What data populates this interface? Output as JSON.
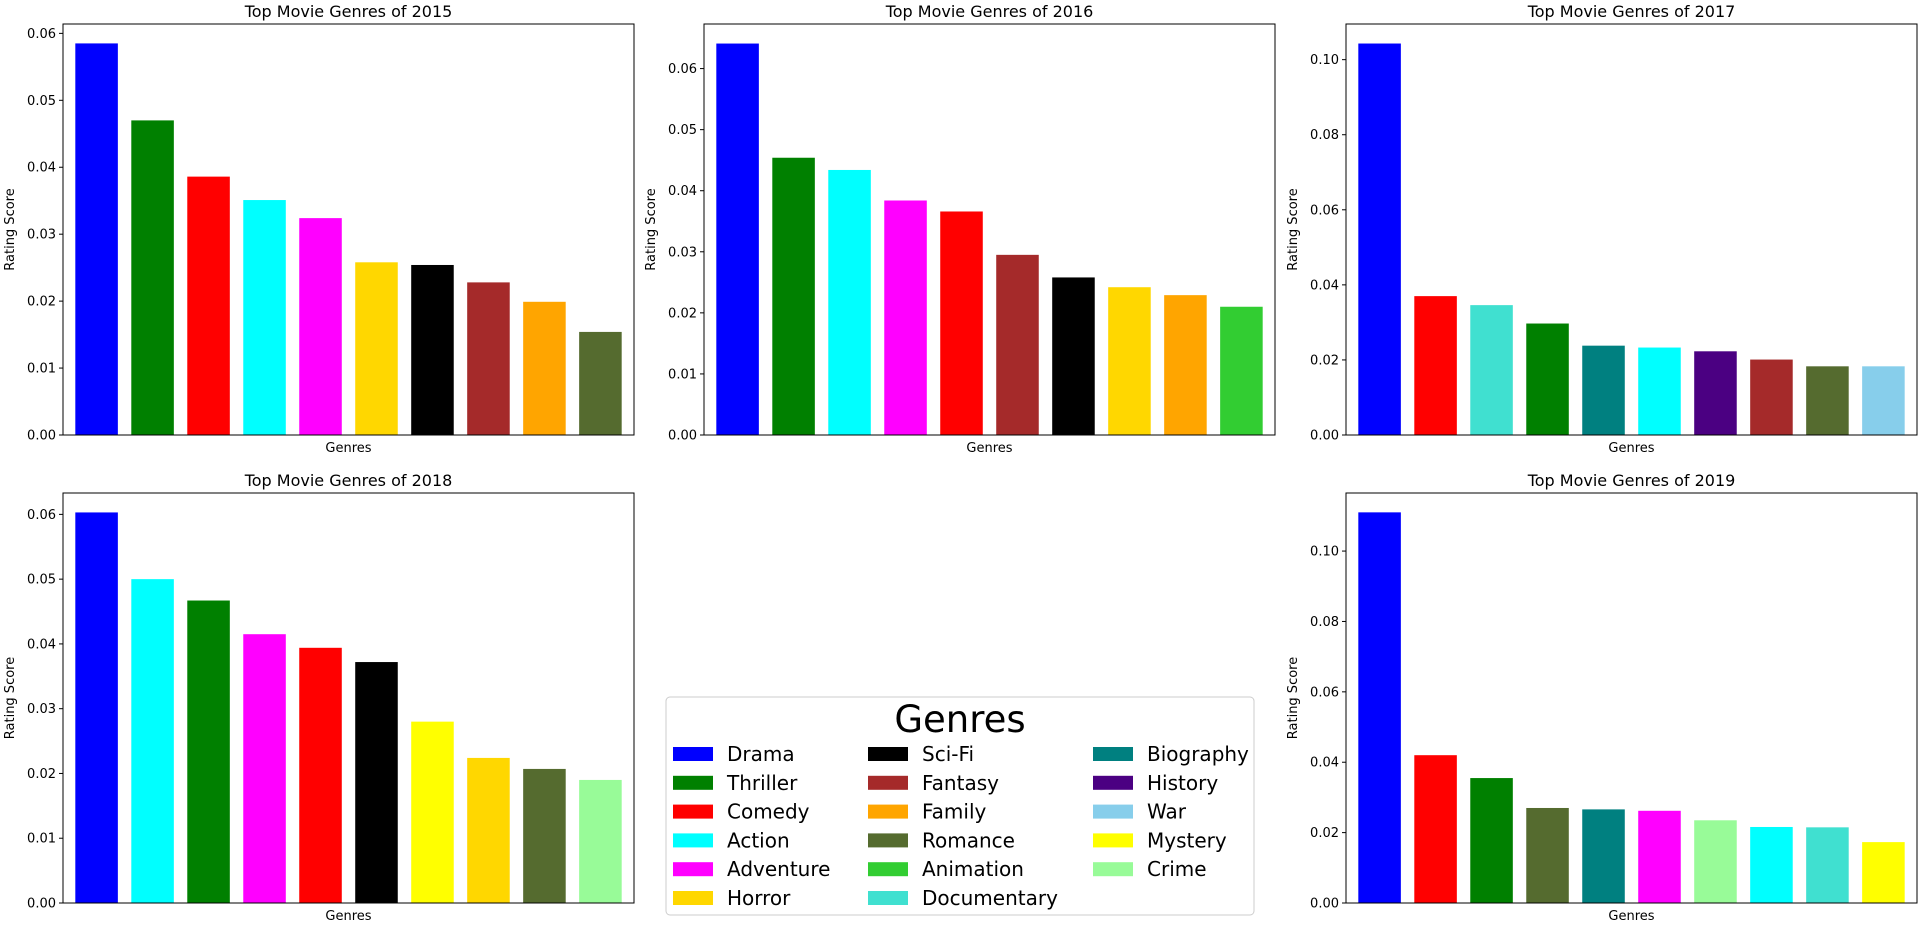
{
  "chart_data": [
    {
      "type": "bar",
      "title": "Top Movie Genres of 2015",
      "xlabel": "Genres",
      "ylabel": "Rating Score",
      "ylim": [
        0,
        0.0614
      ],
      "yticks": [
        "0.00",
        "0.01",
        "0.02",
        "0.03",
        "0.04",
        "0.05",
        "0.06"
      ],
      "categories": [
        "Drama",
        "Thriller",
        "Comedy",
        "Action",
        "Adventure",
        "Horror",
        "Sci-Fi",
        "Fantasy",
        "Family",
        "Romance"
      ],
      "values": [
        0.0585,
        0.047,
        0.0386,
        0.0351,
        0.0324,
        0.0258,
        0.0254,
        0.0228,
        0.0199,
        0.0154
      ],
      "colors": [
        "#0000ff",
        "#008000",
        "#ff0000",
        "#00ffff",
        "#ff00ff",
        "#ffd700",
        "#000000",
        "#a52a2a",
        "#ffa500",
        "#556b2f"
      ]
    },
    {
      "type": "bar",
      "title": "Top Movie Genres of 2016",
      "xlabel": "Genres",
      "ylabel": "Rating Score",
      "ylim": [
        0,
        0.0673
      ],
      "yticks": [
        "0.00",
        "0.01",
        "0.02",
        "0.03",
        "0.04",
        "0.05",
        "0.06"
      ],
      "categories": [
        "Drama",
        "Thriller",
        "Action",
        "Adventure",
        "Comedy",
        "Fantasy",
        "Sci-Fi",
        "Horror",
        "Family",
        "Animation"
      ],
      "values": [
        0.0641,
        0.0454,
        0.0434,
        0.0384,
        0.0366,
        0.0295,
        0.0258,
        0.0242,
        0.0229,
        0.021
      ],
      "colors": [
        "#0000ff",
        "#008000",
        "#00ffff",
        "#ff00ff",
        "#ff0000",
        "#a52a2a",
        "#000000",
        "#ffd700",
        "#ffa500",
        "#32cd32"
      ]
    },
    {
      "type": "bar",
      "title": "Top Movie Genres of 2017",
      "xlabel": "Genres",
      "ylabel": "Rating Score",
      "ylim": [
        0,
        0.1095
      ],
      "yticks": [
        "0.00",
        "0.02",
        "0.04",
        "0.06",
        "0.08",
        "0.10"
      ],
      "categories": [
        "Drama",
        "Comedy",
        "Documentary",
        "Thriller",
        "Biography",
        "Action",
        "History",
        "Fantasy",
        "Romance",
        "War"
      ],
      "values": [
        0.1043,
        0.037,
        0.0346,
        0.0297,
        0.0238,
        0.0233,
        0.0223,
        0.0201,
        0.0183,
        0.0183
      ],
      "colors": [
        "#0000ff",
        "#ff0000",
        "#40e0d0",
        "#008000",
        "#008080",
        "#00ffff",
        "#4b0082",
        "#a52a2a",
        "#556b2f",
        "#87ceeb"
      ]
    },
    {
      "type": "bar",
      "title": "Top Movie Genres of 2018",
      "xlabel": "Genres",
      "ylabel": "Rating Score",
      "ylim": [
        0,
        0.0633
      ],
      "yticks": [
        "0.00",
        "0.01",
        "0.02",
        "0.03",
        "0.04",
        "0.05",
        "0.06"
      ],
      "categories": [
        "Drama",
        "Action",
        "Thriller",
        "Adventure",
        "Comedy",
        "Sci-Fi",
        "Mystery",
        "Horror",
        "Romance",
        "Crime"
      ],
      "values": [
        0.0603,
        0.05,
        0.0467,
        0.0415,
        0.0394,
        0.0372,
        0.028,
        0.0224,
        0.0207,
        0.019
      ],
      "colors": [
        "#0000ff",
        "#00ffff",
        "#008000",
        "#ff00ff",
        "#ff0000",
        "#000000",
        "#ffff00",
        "#ffd700",
        "#556b2f",
        "#98fb98"
      ]
    },
    {
      "type": "bar",
      "title": "Top Movie Genres of 2019",
      "xlabel": "Genres",
      "ylabel": "Rating Score",
      "ylim": [
        0,
        0.1165
      ],
      "yticks": [
        "0.00",
        "0.02",
        "0.04",
        "0.06",
        "0.08",
        "0.10"
      ],
      "categories": [
        "Drama",
        "Comedy",
        "Thriller",
        "Romance",
        "Biography",
        "Adventure",
        "Crime",
        "Action",
        "Documentary",
        "Mystery"
      ],
      "values": [
        0.111,
        0.042,
        0.0355,
        0.027,
        0.0266,
        0.0262,
        0.0235,
        0.0216,
        0.0215,
        0.0173
      ],
      "colors": [
        "#0000ff",
        "#ff0000",
        "#008000",
        "#556b2f",
        "#008080",
        "#ff00ff",
        "#98fb98",
        "#00ffff",
        "#40e0d0",
        "#ffff00"
      ]
    }
  ],
  "legend": {
    "title": "Genres",
    "placement": "bottom-center",
    "entries": [
      {
        "label": "Drama",
        "color": "#0000ff"
      },
      {
        "label": "Thriller",
        "color": "#008000"
      },
      {
        "label": "Comedy",
        "color": "#ff0000"
      },
      {
        "label": "Action",
        "color": "#00ffff"
      },
      {
        "label": "Adventure",
        "color": "#ff00ff"
      },
      {
        "label": "Horror",
        "color": "#ffd700"
      },
      {
        "label": "Sci-Fi",
        "color": "#000000"
      },
      {
        "label": "Fantasy",
        "color": "#a52a2a"
      },
      {
        "label": "Family",
        "color": "#ffa500"
      },
      {
        "label": "Romance",
        "color": "#556b2f"
      },
      {
        "label": "Animation",
        "color": "#32cd32"
      },
      {
        "label": "Documentary",
        "color": "#40e0d0"
      },
      {
        "label": "Biography",
        "color": "#008080"
      },
      {
        "label": "History",
        "color": "#4b0082"
      },
      {
        "label": "War",
        "color": "#87ceeb"
      },
      {
        "label": "Mystery",
        "color": "#ffff00"
      },
      {
        "label": "Crime",
        "color": "#98fb98"
      }
    ]
  }
}
